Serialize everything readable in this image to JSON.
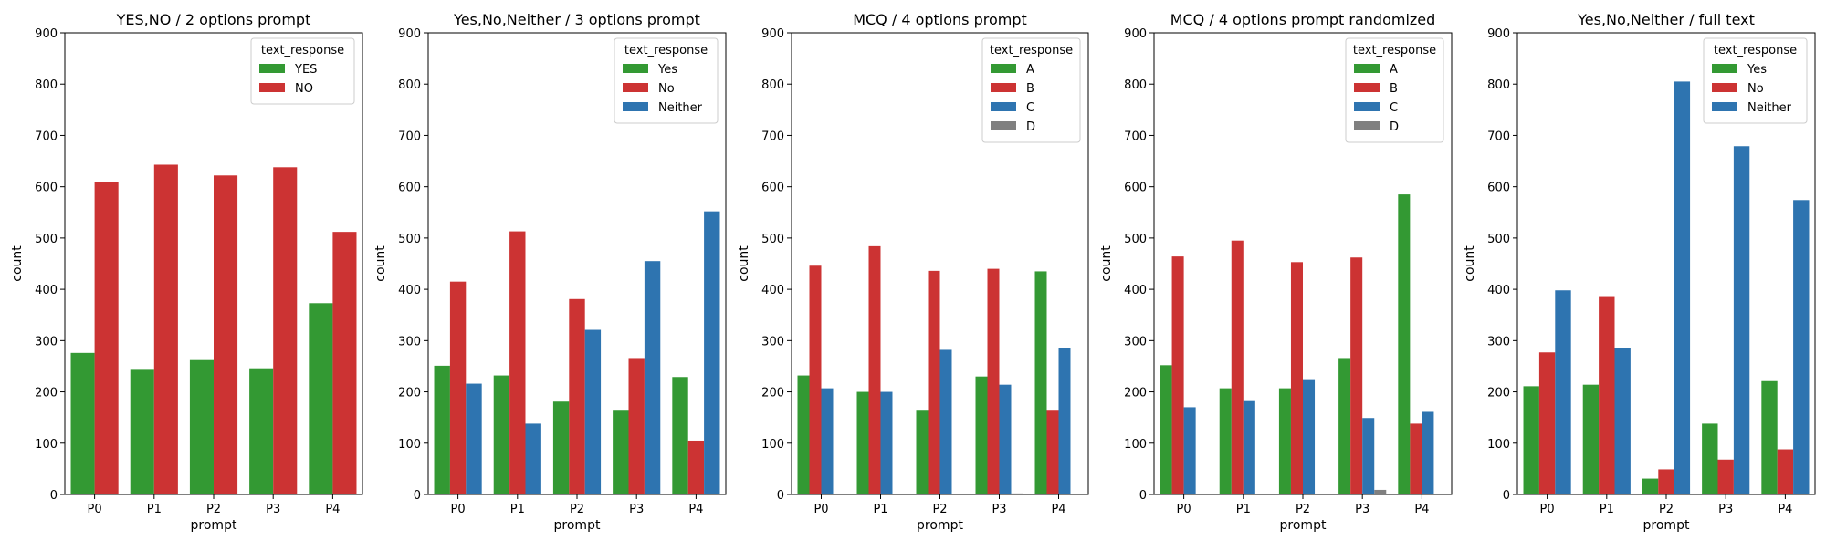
{
  "axis_common": {
    "xlabel": "prompt",
    "ylabel": "count",
    "legend_title": "text_response"
  },
  "colors": {
    "green": "#339933",
    "red": "#cc3333",
    "blue": "#2e74b0",
    "gray": "#808080"
  },
  "chart_data": [
    {
      "type": "bar",
      "title": "YES,NO / 2 options prompt",
      "xlabel": "prompt",
      "ylabel": "count",
      "ylim": [
        0,
        900
      ],
      "yticks": [
        0,
        100,
        200,
        300,
        400,
        500,
        600,
        700,
        800,
        900
      ],
      "categories": [
        "P0",
        "P1",
        "P2",
        "P3",
        "P4"
      ],
      "legend_title": "text_response",
      "legend_position": "top-right",
      "series": [
        {
          "name": "YES",
          "color": "#339933",
          "values": [
            276,
            243,
            262,
            246,
            373
          ]
        },
        {
          "name": "NO",
          "color": "#cc3333",
          "values": [
            609,
            643,
            622,
            638,
            512
          ]
        }
      ]
    },
    {
      "type": "bar",
      "title": "Yes,No,Neither / 3 options prompt",
      "xlabel": "prompt",
      "ylabel": "count",
      "ylim": [
        0,
        900
      ],
      "yticks": [
        0,
        100,
        200,
        300,
        400,
        500,
        600,
        700,
        800,
        900
      ],
      "categories": [
        "P0",
        "P1",
        "P2",
        "P3",
        "P4"
      ],
      "legend_title": "text_response",
      "legend_position": "top-right",
      "series": [
        {
          "name": "Yes",
          "color": "#339933",
          "values": [
            251,
            232,
            181,
            165,
            229
          ]
        },
        {
          "name": "No",
          "color": "#cc3333",
          "values": [
            415,
            513,
            381,
            266,
            105
          ]
        },
        {
          "name": "Neither",
          "color": "#2e74b0",
          "values": [
            216,
            138,
            321,
            455,
            552
          ]
        }
      ]
    },
    {
      "type": "bar",
      "title": "MCQ / 4 options prompt",
      "xlabel": "prompt",
      "ylabel": "count",
      "ylim": [
        0,
        900
      ],
      "yticks": [
        0,
        100,
        200,
        300,
        400,
        500,
        600,
        700,
        800,
        900
      ],
      "categories": [
        "P0",
        "P1",
        "P2",
        "P3",
        "P4"
      ],
      "legend_title": "text_response",
      "legend_position": "top-right",
      "series": [
        {
          "name": "A",
          "color": "#339933",
          "values": [
            232,
            200,
            165,
            230,
            435
          ]
        },
        {
          "name": "B",
          "color": "#cc3333",
          "values": [
            446,
            484,
            436,
            440,
            165
          ]
        },
        {
          "name": "C",
          "color": "#2e74b0",
          "values": [
            207,
            200,
            282,
            214,
            285
          ]
        },
        {
          "name": "D",
          "color": "#808080",
          "values": [
            0,
            0,
            1,
            2,
            0
          ]
        }
      ]
    },
    {
      "type": "bar",
      "title": "MCQ / 4 options prompt randomized",
      "xlabel": "prompt",
      "ylabel": "count",
      "ylim": [
        0,
        900
      ],
      "yticks": [
        0,
        100,
        200,
        300,
        400,
        500,
        600,
        700,
        800,
        900
      ],
      "categories": [
        "P0",
        "P1",
        "P2",
        "P3",
        "P4"
      ],
      "legend_title": "text_response",
      "legend_position": "top-right",
      "series": [
        {
          "name": "A",
          "color": "#339933",
          "values": [
            252,
            207,
            207,
            266,
            585
          ]
        },
        {
          "name": "B",
          "color": "#cc3333",
          "values": [
            464,
            495,
            453,
            462,
            138
          ]
        },
        {
          "name": "C",
          "color": "#2e74b0",
          "values": [
            170,
            182,
            223,
            149,
            161
          ]
        },
        {
          "name": "D",
          "color": "#808080",
          "values": [
            0,
            0,
            1,
            9,
            1
          ]
        }
      ]
    },
    {
      "type": "bar",
      "title": "Yes,No,Neither / full text",
      "xlabel": "prompt",
      "ylabel": "count",
      "ylim": [
        0,
        900
      ],
      "yticks": [
        0,
        100,
        200,
        300,
        400,
        500,
        600,
        700,
        800,
        900
      ],
      "categories": [
        "P0",
        "P1",
        "P2",
        "P3",
        "P4"
      ],
      "legend_title": "text_response",
      "legend_position": "top-right",
      "series": [
        {
          "name": "Yes",
          "color": "#339933",
          "values": [
            211,
            214,
            31,
            138,
            221
          ]
        },
        {
          "name": "No",
          "color": "#cc3333",
          "values": [
            277,
            385,
            49,
            68,
            88
          ]
        },
        {
          "name": "Neither",
          "color": "#2e74b0",
          "values": [
            398,
            285,
            805,
            679,
            574
          ]
        }
      ]
    }
  ]
}
